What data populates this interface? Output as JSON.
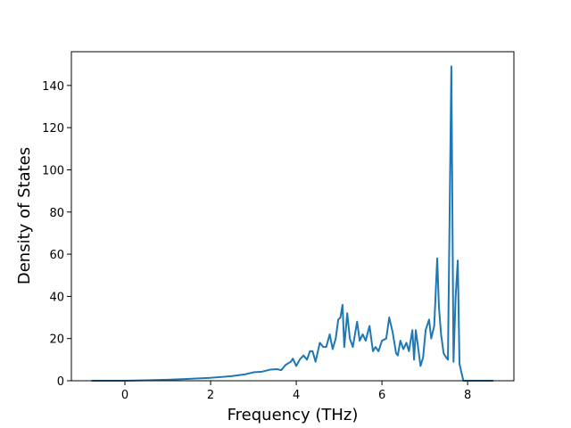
{
  "chart_data": {
    "type": "line",
    "xlabel": "Frequency (THz)",
    "ylabel": "Density of States",
    "x": [
      -0.78,
      0,
      0.5,
      1,
      1.5,
      2,
      2.5,
      2.8,
      3,
      3.2,
      3.4,
      3.55,
      3.65,
      3.75,
      3.87,
      3.92,
      4.0,
      4.08,
      4.17,
      4.25,
      4.32,
      4.38,
      4.45,
      4.55,
      4.63,
      4.7,
      4.78,
      4.85,
      4.92,
      4.98,
      5.03,
      5.08,
      5.12,
      5.19,
      5.25,
      5.32,
      5.42,
      5.48,
      5.55,
      5.62,
      5.71,
      5.79,
      5.85,
      5.92,
      6.0,
      6.1,
      6.17,
      6.25,
      6.33,
      6.37,
      6.43,
      6.5,
      6.57,
      6.63,
      6.71,
      6.75,
      6.79,
      6.83,
      6.9,
      6.96,
      7.02,
      7.1,
      7.15,
      7.22,
      7.29,
      7.33,
      7.38,
      7.44,
      7.5,
      7.54,
      7.62,
      7.67,
      7.72,
      7.77,
      7.81,
      7.9,
      8.6
    ],
    "values": [
      0,
      0,
      0.2,
      0.5,
      0.9,
      1.4,
      2.2,
      3,
      4,
      4.3,
      5.3,
      5.5,
      5,
      7.5,
      9,
      10.5,
      7,
      10,
      12,
      10,
      14,
      14,
      9,
      18,
      16,
      16,
      22,
      15,
      20,
      29,
      30,
      36,
      16,
      32,
      20,
      16,
      28,
      19,
      22,
      19,
      26,
      14,
      16,
      14,
      19,
      20,
      30,
      23,
      13,
      12,
      19,
      15,
      18,
      14,
      24,
      10,
      24,
      18,
      7,
      11,
      24,
      29,
      20,
      26,
      58,
      35,
      22,
      13,
      11,
      10,
      149,
      9,
      40,
      57,
      8,
      0,
      0
    ],
    "color": "#1f77b4",
    "xlim": [
      -1.25,
      9.08
    ],
    "xticks": [
      0,
      2,
      4,
      6,
      8
    ],
    "ylim": [
      0,
      156
    ],
    "yticks": [
      0,
      20,
      40,
      60,
      80,
      100,
      120,
      140
    ]
  }
}
